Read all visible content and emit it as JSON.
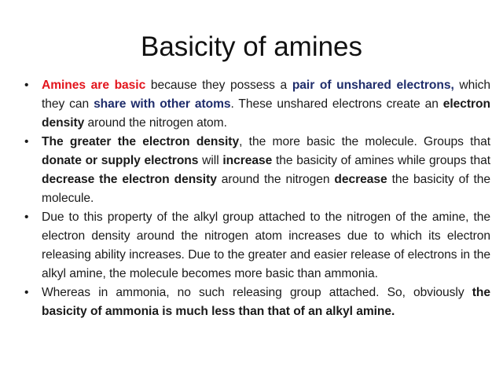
{
  "title": "Basicity of amines",
  "colors": {
    "red": "#e3141c",
    "blue": "#1f2d6b"
  },
  "bullets": [
    [
      {
        "t": "Amines are basic",
        "s": "red"
      },
      {
        "t": " because they possess a ",
        "s": ""
      },
      {
        "t": "pair of unshared electrons,",
        "s": "blue"
      },
      {
        "t": " which they can ",
        "s": ""
      },
      {
        "t": "share with other atoms",
        "s": "blue"
      },
      {
        "t": ". These unshared electrons create an ",
        "s": ""
      },
      {
        "t": "electron density",
        "s": "b"
      },
      {
        "t": " around the nitrogen atom.",
        "s": ""
      }
    ],
    [
      {
        "t": "The greater the electron density",
        "s": "b"
      },
      {
        "t": ", the more basic the molecule. Groups that ",
        "s": ""
      },
      {
        "t": "donate or supply electrons",
        "s": "b"
      },
      {
        "t": " will ",
        "s": ""
      },
      {
        "t": "increase",
        "s": "b"
      },
      {
        "t": " the basicity of amines while groups that ",
        "s": ""
      },
      {
        "t": "decrease the electron density",
        "s": "b"
      },
      {
        "t": " around the nitrogen ",
        "s": ""
      },
      {
        "t": "decrease",
        "s": "b"
      },
      {
        "t": " the basicity of the molecule.",
        "s": ""
      }
    ],
    [
      {
        "t": "Due to this property of the alkyl group attached to the nitrogen of the amine, the electron density around the nitrogen atom increases due to which its electron releasing ability increases. Due to the greater and easier release of electrons in the alkyl amine, the molecule becomes more basic than ammonia.",
        "s": ""
      }
    ],
    [
      {
        "t": "Whereas in ammonia, no such releasing group attached. So, obviously ",
        "s": ""
      },
      {
        "t": "the basicity of ammonia is much less than that of an alkyl amine.",
        "s": "b"
      }
    ]
  ]
}
